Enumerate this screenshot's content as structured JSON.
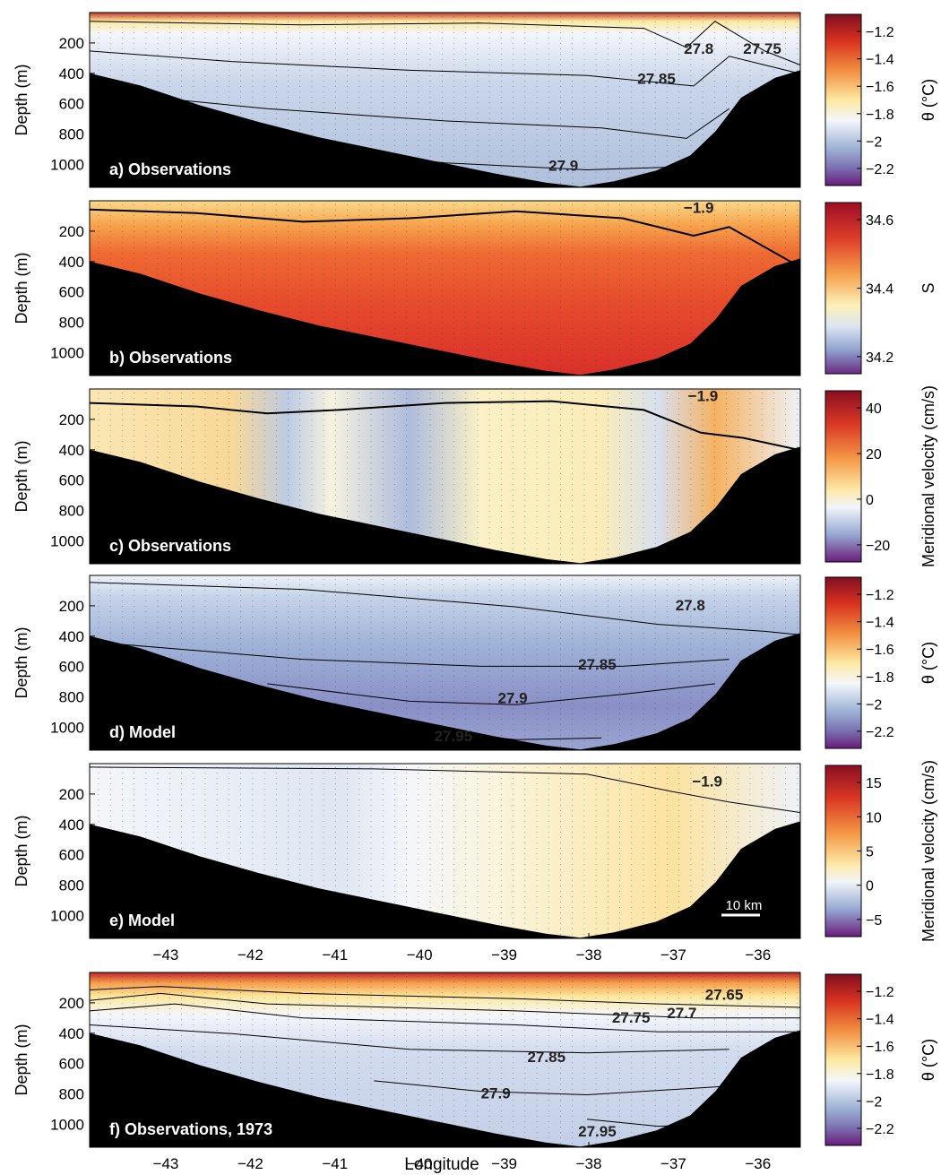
{
  "figure": {
    "xlabel": "Longitude",
    "colors": {
      "ocean_bg": "#f3f5f9",
      "bathymetry": "#000000",
      "contour": "#000000"
    }
  },
  "chart_data": [
    {
      "type": "heatmap",
      "panel_label": "a) Observations",
      "ylabel": "Depth (m)",
      "yticks": [
        200,
        400,
        600,
        800,
        1000
      ],
      "ylim": [
        1150,
        0
      ],
      "xlim": [
        -43.9,
        -35.5
      ],
      "show_xticks": false,
      "contour_labels": [
        {
          "text": "27.8",
          "lon": -36.7,
          "depth": 270
        },
        {
          "text": "27.75",
          "lon": -35.95,
          "depth": 270
        },
        {
          "text": "27.85",
          "lon": -37.2,
          "depth": 470
        },
        {
          "text": "27.9",
          "lon": -38.3,
          "depth": 1040
        }
      ],
      "colorbar": {
        "label": "θ (°C)",
        "ticks": [
          "−1.2",
          "−1.4",
          "−1.6",
          "−1.8",
          "−2",
          "−2.2"
        ],
        "scale": "temperature"
      }
    },
    {
      "type": "heatmap",
      "panel_label": "b) Observations",
      "ylabel": "Depth (m)",
      "yticks": [
        200,
        400,
        600,
        800,
        1000
      ],
      "ylim": [
        1150,
        0
      ],
      "xlim": [
        -43.9,
        -35.5
      ],
      "show_xticks": false,
      "contour_labels": [
        {
          "text": "−1.9",
          "lon": -36.7,
          "depth": 80
        }
      ],
      "colorbar": {
        "label": "S",
        "ticks": [
          "34.6",
          "34.4",
          "34.2"
        ],
        "scale": "salinity"
      }
    },
    {
      "type": "heatmap",
      "panel_label": "c) Observations",
      "ylabel": "Depth (m)",
      "yticks": [
        200,
        400,
        600,
        800,
        1000
      ],
      "ylim": [
        1150,
        0
      ],
      "xlim": [
        -43.9,
        -35.5
      ],
      "show_xticks": false,
      "contour_labels": [
        {
          "text": "−1.9",
          "lon": -36.65,
          "depth": 80
        }
      ],
      "colorbar": {
        "label": "Meridional velocity (cm/s)",
        "ticks": [
          "40",
          "20",
          "0",
          "−20"
        ],
        "scale": "velocity"
      }
    },
    {
      "type": "heatmap",
      "panel_label": "d) Model",
      "ylabel": "Depth (m)",
      "yticks": [
        200,
        400,
        600,
        800,
        1000
      ],
      "ylim": [
        1150,
        0
      ],
      "xlim": [
        -43.9,
        -35.5
      ],
      "show_xticks": false,
      "contour_labels": [
        {
          "text": "27.8",
          "lon": -36.8,
          "depth": 230
        },
        {
          "text": "27.85",
          "lon": -37.9,
          "depth": 620
        },
        {
          "text": "27.9",
          "lon": -38.9,
          "depth": 840
        },
        {
          "text": "27.95",
          "lon": -39.6,
          "depth": 1090
        }
      ],
      "colorbar": {
        "label": "θ (°C)",
        "ticks": [
          "−1.2",
          "−1.4",
          "−1.6",
          "−1.8",
          "−2",
          "−2.2"
        ],
        "scale": "temperature"
      }
    },
    {
      "type": "heatmap",
      "panel_label": "e) Model",
      "ylabel": "Depth (m)",
      "yticks": [
        200,
        400,
        600,
        800,
        1000
      ],
      "ylim": [
        1150,
        0
      ],
      "xlim": [
        -43.9,
        -35.5
      ],
      "show_xticks": true,
      "xticks": [
        -43,
        -42,
        -41,
        -40,
        -39,
        -38,
        -37,
        -36
      ],
      "scale_bar": "10 km",
      "contour_labels": [
        {
          "text": "−1.9",
          "lon": -36.6,
          "depth": 150
        }
      ],
      "colorbar": {
        "label": "Meridional velocity (cm/s)",
        "ticks": [
          "15",
          "10",
          "5",
          "0",
          "−5"
        ],
        "scale": "velocity"
      }
    },
    {
      "type": "heatmap",
      "panel_label": "f) Observations, 1973",
      "ylabel": "Depth (m)",
      "yticks": [
        200,
        400,
        600,
        800,
        1000
      ],
      "ylim": [
        1150,
        0
      ],
      "xlim": [
        -43.9,
        -35.5
      ],
      "show_xticks": true,
      "xticks": [
        -43,
        -42,
        -41,
        -40,
        -39,
        -38,
        -37,
        -36
      ],
      "contour_labels": [
        {
          "text": "27.65",
          "lon": -36.4,
          "depth": 180
        },
        {
          "text": "27.7",
          "lon": -36.9,
          "depth": 300
        },
        {
          "text": "27.75",
          "lon": -37.5,
          "depth": 330
        },
        {
          "text": "27.85",
          "lon": -38.5,
          "depth": 590
        },
        {
          "text": "27.9",
          "lon": -39.1,
          "depth": 830
        },
        {
          "text": "27.95",
          "lon": -37.9,
          "depth": 1080
        }
      ],
      "colorbar": {
        "label": "θ (°C)",
        "ticks": [
          "−1.2",
          "−1.4",
          "−1.6",
          "−1.8",
          "−2",
          "−2.2"
        ],
        "scale": "temperature"
      }
    }
  ]
}
